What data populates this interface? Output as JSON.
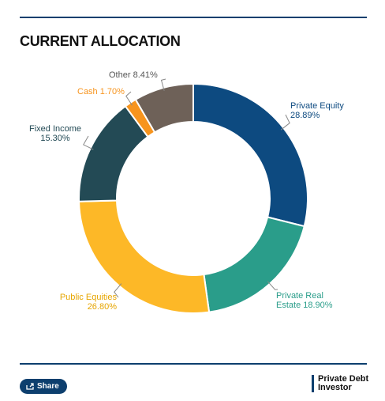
{
  "chart_data": {
    "type": "donut",
    "title": "CURRENT ALLOCATION",
    "categories": [
      "Private Equity",
      "Private Real Estate",
      "Public Equities",
      "Fixed Income",
      "Cash",
      "Other"
    ],
    "values": [
      28.89,
      18.9,
      26.8,
      15.3,
      1.7,
      8.41
    ],
    "value_labels": [
      "28.89%",
      "18.90%",
      "26.80%",
      "15.30%",
      "1.70%",
      "8.41%"
    ],
    "colors": [
      "#0d4a80",
      "#2a9d8a",
      "#fdb827",
      "#234a55",
      "#f7941d",
      "#6e6158"
    ]
  },
  "footer": {
    "share": "Share",
    "logo": [
      "Private Debt",
      "Investor"
    ]
  }
}
